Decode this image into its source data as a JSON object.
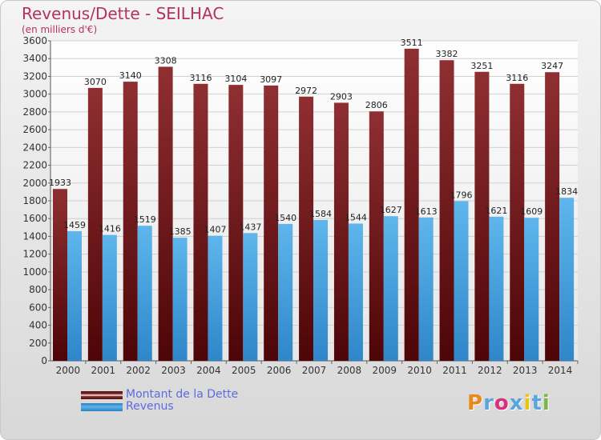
{
  "title": "Revenus/Dette - SEILHAC",
  "subtitle": "(en milliers d'€)",
  "logo_text": "Proxiti",
  "logo_colors": [
    "#e8891c",
    "#5aa5de",
    "#d8307a",
    "#5aa5de",
    "#e8c31c",
    "#5aa5de",
    "#7ab648"
  ],
  "chart_data": {
    "type": "bar",
    "categories": [
      "2000",
      "2001",
      "2002",
      "2003",
      "2004",
      "2005",
      "2006",
      "2007",
      "2008",
      "2009",
      "2010",
      "2011",
      "2012",
      "2013",
      "2014"
    ],
    "series": [
      {
        "name": "Montant de la Dette",
        "color": "#7a1f22",
        "values": [
          1933,
          3070,
          3140,
          3308,
          3116,
          3104,
          3097,
          2972,
          2903,
          2806,
          3511,
          3382,
          3251,
          3116,
          3247
        ]
      },
      {
        "name": "Revenus",
        "color": "#4aa3e2",
        "values": [
          1459,
          1416,
          1519,
          1385,
          1407,
          1437,
          1540,
          1584,
          1544,
          1627,
          1613,
          1796,
          1621,
          1609,
          1834
        ]
      }
    ],
    "ylim": [
      0,
      3600
    ],
    "yticks": [
      0,
      200,
      400,
      600,
      800,
      1000,
      1200,
      1400,
      1600,
      1800,
      2000,
      2200,
      2400,
      2600,
      2800,
      3000,
      3200,
      3400,
      3600
    ],
    "grid": true,
    "legend": "bottom-left"
  }
}
